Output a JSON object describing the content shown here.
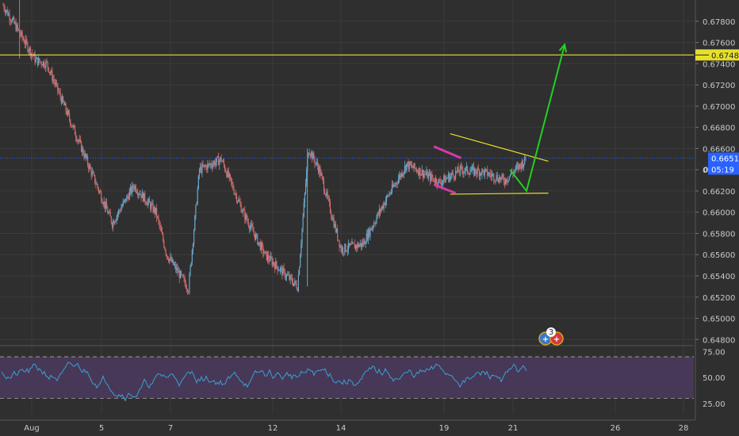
{
  "chart_data": {
    "type": "candlestick",
    "price_axis": {
      "ticks": [
        "0.67800",
        "0.67600",
        "0.67400",
        "0.67200",
        "0.67000",
        "0.66800",
        "0.66600",
        "0.66400",
        "0.66200",
        "0.66000",
        "0.65800",
        "0.65600",
        "0.65400",
        "0.65200",
        "0.65000",
        "0.64800"
      ],
      "range": [
        0.6475,
        0.68
      ]
    },
    "time_axis": {
      "ticks": [
        "Aug",
        "5",
        "7",
        "12",
        "14",
        "19",
        "21",
        "26",
        "28"
      ]
    },
    "horizontal_level": {
      "value": 0.67482,
      "label": "0.67482",
      "color": "#e7e02a"
    },
    "last_price": {
      "value": 0.6651,
      "label": "0.66510",
      "countdown": "05:19",
      "partial_label": "0",
      "color": "#2962ff"
    },
    "price_series": {
      "description_points": [
        [
          0,
          0.6795
        ],
        [
          3,
          0.6743
        ],
        [
          4,
          0.674
        ],
        [
          6,
          0.669
        ],
        [
          8,
          0.664
        ],
        [
          10,
          0.659
        ],
        [
          12,
          0.6625
        ],
        [
          14,
          0.66
        ],
        [
          15,
          0.656
        ],
        [
          17,
          0.6528
        ],
        [
          18,
          0.664
        ],
        [
          20,
          0.665
        ],
        [
          22,
          0.66
        ],
        [
          24,
          0.656
        ],
        [
          26,
          0.654
        ],
        [
          27,
          0.653
        ],
        [
          28,
          0.666
        ],
        [
          29,
          0.664
        ],
        [
          31,
          0.6565
        ],
        [
          33,
          0.657
        ],
        [
          35,
          0.661
        ],
        [
          37,
          0.6645
        ],
        [
          38,
          0.664
        ],
        [
          40,
          0.6628
        ],
        [
          42,
          0.664
        ],
        [
          44,
          0.6638
        ],
        [
          46,
          0.663
        ],
        [
          48,
          0.665
        ]
      ]
    },
    "rsi": {
      "ticks": [
        "75.00",
        "50.00",
        "25.00"
      ],
      "upper": 70,
      "lower": 30,
      "range": [
        15,
        80
      ],
      "line_color": "#3aa0d6",
      "band_color": "#4b3a5e"
    },
    "drawings": {
      "trend_upper": {
        "from": [
          41,
          0.6674
        ],
        "to": [
          50,
          0.6648
        ],
        "color": "#e7e02a"
      },
      "trend_lower": {
        "from": [
          41,
          0.6617
        ],
        "to": [
          50,
          0.6618
        ],
        "color": "#e7e02a"
      },
      "flag_upper": {
        "from": [
          39.5,
          0.6662
        ],
        "to": [
          42,
          0.6651
        ],
        "color": "#d63aa8"
      },
      "flag_lower": {
        "from": [
          39.5,
          0.6626
        ],
        "to": [
          41.5,
          0.6618
        ],
        "color": "#d63aa8"
      },
      "projection": {
        "points": [
          [
            46.5,
            0.664
          ],
          [
            48,
            0.662
          ],
          [
            51.5,
            0.6758
          ]
        ],
        "color": "#22d022"
      }
    },
    "event_badge": {
      "count": "3"
    }
  },
  "colors": {
    "background": "#2f2f2f",
    "grid": "#3b3b3b",
    "up": "#6aa6c8",
    "down": "#d06a6a"
  }
}
